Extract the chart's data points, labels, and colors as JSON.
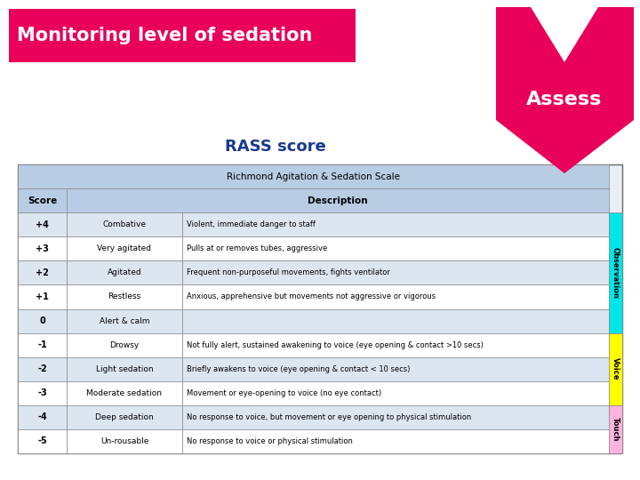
{
  "title": "Monitoring level of sedation",
  "title_bg": "#e8005a",
  "title_color": "#ffffff",
  "rass_title": "RASS score",
  "rass_color": "#1a3a8f",
  "table_header1": "Richmond Agitation & Sedation Scale",
  "table_header2": "Description",
  "table_bg_header": "#b8cce4",
  "table_bg_row_odd": "#dce6f1",
  "table_bg_row_even": "#ffffff",
  "assess_bg": "#e8005a",
  "assess_text": "Assess",
  "rows": [
    [
      "+4",
      "Combative",
      "Violent, immediate danger to staff"
    ],
    [
      "+3",
      "Very agitated",
      "Pulls at or removes tubes, aggressive"
    ],
    [
      "+2",
      "Agitated",
      "Frequent non-purposeful movements, fights ventilator"
    ],
    [
      "+1",
      "Restless",
      "Anxious, apprehensive but movements not aggressive or vigorous"
    ],
    [
      "0",
      "Alert & calm",
      ""
    ],
    [
      "-1",
      "Drowsy",
      "Not fully alert, sustained awakening to voice (eye opening & contact >10 secs)"
    ],
    [
      "-2",
      "Light sedation",
      "Briefly awakens to voice (eye opening & contact < 10 secs)"
    ],
    [
      "-3",
      "Moderate sedation",
      "Movement or eye-opening to voice (no eye contact)"
    ],
    [
      "-4",
      "Deep sedation",
      "No response to voice, but movement or eye opening to physical stimulation"
    ],
    [
      "-5",
      "Un-rousable",
      "No response to voice or physical stimulation"
    ]
  ],
  "side_labels": [
    {
      "text": "Observation",
      "color": "#00e5e5",
      "rows": [
        0,
        4
      ]
    },
    {
      "text": "Voice",
      "color": "#ffff00",
      "rows": [
        5,
        7
      ]
    },
    {
      "text": "Touch",
      "color": "#ffb3de",
      "rows": [
        8,
        9
      ]
    }
  ],
  "bg_color": "#ffffff"
}
